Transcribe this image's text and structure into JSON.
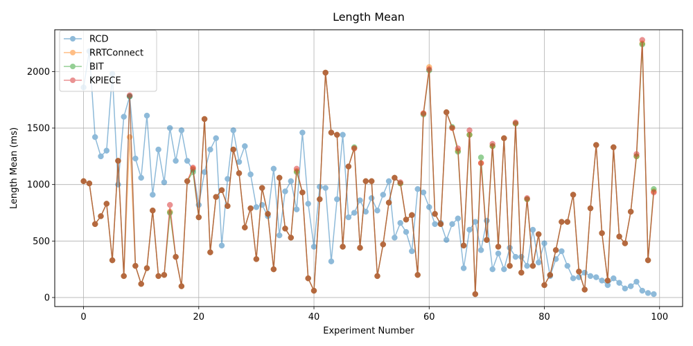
{
  "chart_data": {
    "type": "line",
    "title": "Length Mean",
    "xlabel": "Experiment Number",
    "ylabel": "Length Mean (ms)",
    "xlim": [
      -5,
      104
    ],
    "ylim": [
      -80,
      2370
    ],
    "xticks": [
      0,
      20,
      40,
      60,
      80,
      100
    ],
    "yticks": [
      0,
      500,
      1000,
      1500,
      2000
    ],
    "grid": true,
    "legend_position": "top-left",
    "x": [
      0,
      1,
      2,
      3,
      4,
      5,
      6,
      7,
      8,
      9,
      10,
      11,
      12,
      13,
      14,
      15,
      16,
      17,
      18,
      19,
      20,
      21,
      22,
      23,
      24,
      25,
      26,
      27,
      28,
      29,
      30,
      31,
      32,
      33,
      34,
      35,
      36,
      37,
      38,
      39,
      40,
      41,
      42,
      43,
      44,
      45,
      46,
      47,
      48,
      49,
      50,
      51,
      52,
      53,
      54,
      55,
      56,
      57,
      58,
      59,
      60,
      61,
      62,
      63,
      64,
      65,
      66,
      67,
      68,
      69,
      70,
      71,
      72,
      73,
      74,
      75,
      76,
      77,
      78,
      79,
      80,
      81,
      82,
      83,
      84,
      85,
      86,
      87,
      88,
      89,
      90,
      91,
      92,
      93,
      94,
      95,
      96,
      97,
      98,
      99
    ],
    "series": [
      {
        "name": "RCD",
        "color": "#1f77b4",
        "values": [
          1860,
          2180,
          1420,
          1250,
          1300,
          1980,
          1000,
          1600,
          1780,
          1230,
          1060,
          1610,
          910,
          1310,
          1020,
          1500,
          1210,
          1480,
          1210,
          1130,
          820,
          1110,
          1310,
          1410,
          460,
          1050,
          1480,
          1200,
          1340,
          1090,
          800,
          820,
          720,
          1140,
          550,
          940,
          1030,
          780,
          1460,
          830,
          450,
          980,
          970,
          320,
          870,
          1440,
          710,
          750,
          860,
          760,
          880,
          770,
          910,
          1030,
          530,
          660,
          580,
          410,
          960,
          930,
          800,
          650,
          660,
          510,
          650,
          700,
          260,
          600,
          670,
          420,
          680,
          250,
          390,
          250,
          440,
          360,
          360,
          280,
          600,
          310,
          480,
          190,
          340,
          410,
          280,
          170,
          180,
          220,
          190,
          180,
          150,
          110,
          170,
          130,
          80,
          100,
          140,
          60,
          40,
          30
        ]
      },
      {
        "name": "RRTConnect",
        "color": "#ff7f0e",
        "values": [
          1030,
          1010,
          650,
          720,
          830,
          330,
          1210,
          190,
          1420,
          280,
          120,
          260,
          770,
          190,
          200,
          760,
          360,
          100,
          1030,
          1140,
          710,
          1580,
          400,
          890,
          950,
          810,
          1310,
          1100,
          620,
          790,
          340,
          970,
          740,
          250,
          1060,
          610,
          530,
          1120,
          930,
          170,
          60,
          870,
          1990,
          1460,
          1440,
          450,
          1160,
          1320,
          440,
          1030,
          1030,
          190,
          470,
          840,
          1060,
          1010,
          690,
          730,
          200,
          1630,
          2040,
          740,
          650,
          1640,
          1500,
          1300,
          460,
          1440,
          30,
          1190,
          510,
          1340,
          450,
          1410,
          280,
          1540,
          220,
          870,
          280,
          560,
          110,
          200,
          420,
          670,
          670,
          910,
          230,
          70,
          790,
          1350,
          570,
          150,
          1330,
          540,
          480,
          760,
          1250,
          2250,
          330,
          940
        ]
      },
      {
        "name": "BIT",
        "color": "#2ca02c",
        "values": [
          1030,
          1010,
          650,
          720,
          830,
          330,
          1210,
          190,
          1780,
          280,
          120,
          260,
          770,
          190,
          200,
          750,
          360,
          100,
          1030,
          1110,
          710,
          1580,
          400,
          890,
          950,
          810,
          1310,
          1100,
          620,
          790,
          340,
          970,
          740,
          250,
          1060,
          610,
          530,
          1110,
          930,
          170,
          60,
          870,
          1990,
          1460,
          1440,
          450,
          1160,
          1330,
          440,
          1030,
          1030,
          190,
          470,
          840,
          1060,
          1010,
          690,
          730,
          200,
          1620,
          2010,
          740,
          650,
          1640,
          1510,
          1290,
          460,
          1440,
          30,
          1240,
          510,
          1340,
          450,
          1410,
          280,
          1540,
          220,
          870,
          280,
          560,
          110,
          200,
          420,
          670,
          670,
          910,
          230,
          70,
          790,
          1350,
          570,
          150,
          1330,
          540,
          480,
          760,
          1250,
          2240,
          330,
          960
        ]
      },
      {
        "name": "KPIECE",
        "color": "#d62728",
        "values": [
          1030,
          1010,
          650,
          720,
          830,
          330,
          1210,
          190,
          1790,
          280,
          120,
          260,
          770,
          190,
          200,
          820,
          360,
          100,
          1030,
          1150,
          710,
          1580,
          400,
          890,
          950,
          810,
          1310,
          1100,
          620,
          790,
          340,
          970,
          740,
          250,
          1060,
          610,
          530,
          1140,
          930,
          170,
          60,
          870,
          1990,
          1460,
          1440,
          450,
          1160,
          1320,
          440,
          1030,
          1030,
          190,
          470,
          840,
          1060,
          1020,
          690,
          730,
          200,
          1630,
          2020,
          740,
          650,
          1640,
          1500,
          1320,
          460,
          1480,
          30,
          1190,
          510,
          1360,
          450,
          1410,
          280,
          1550,
          220,
          880,
          280,
          560,
          110,
          200,
          420,
          670,
          670,
          910,
          230,
          70,
          790,
          1350,
          570,
          150,
          1330,
          540,
          480,
          760,
          1270,
          2280,
          330,
          930
        ]
      }
    ]
  }
}
